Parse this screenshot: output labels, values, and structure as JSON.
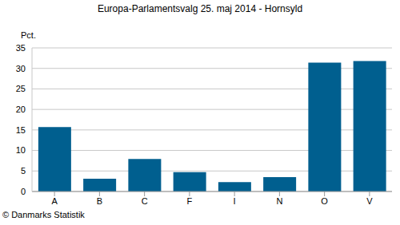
{
  "chart_data": {
    "type": "bar",
    "title": "Europa-Parlamentsvalg 25. maj 2014 - Hornsyld",
    "y_label": "Pct.",
    "annotations": [
      "© Danmarks Statistik"
    ],
    "categories": [
      "A",
      "B",
      "C",
      "F",
      "I",
      "N",
      "O",
      "V"
    ],
    "values": [
      15.7,
      3.1,
      7.9,
      4.7,
      2.3,
      3.5,
      31.4,
      31.8
    ],
    "color": "#005f8f",
    "ylim": [
      0,
      35
    ],
    "yticks": [
      0,
      5,
      10,
      15,
      20,
      25,
      30,
      35
    ],
    "grid": true
  }
}
